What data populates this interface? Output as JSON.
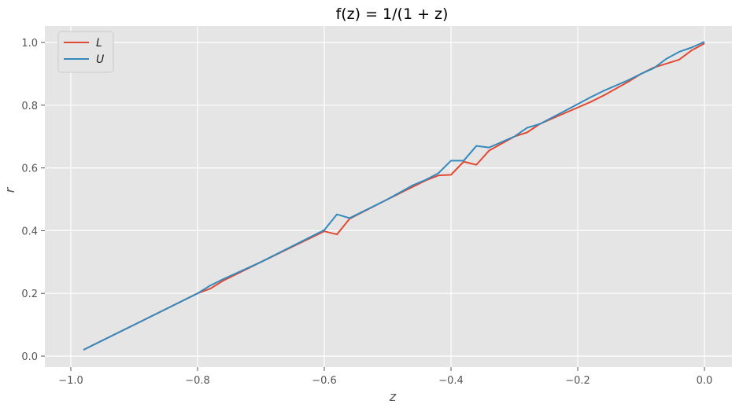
{
  "chart_data": {
    "type": "line",
    "title": "f(z) = 1/(1 + z)",
    "xlabel": "z",
    "ylabel": "r",
    "xlim": [
      -1.0,
      0.0
    ],
    "ylim": [
      -0.03,
      1.05
    ],
    "grid": true,
    "legend_position": "top-left",
    "background": "#e5e5e5",
    "x_ticks": [
      -1.0,
      -0.8,
      -0.6,
      -0.4,
      -0.2,
      0.0
    ],
    "x_tick_labels": [
      "−1.0",
      "−0.8",
      "−0.6",
      "−0.4",
      "−0.2",
      "0.0"
    ],
    "y_ticks": [
      0.0,
      0.2,
      0.4,
      0.6,
      0.8,
      1.0
    ],
    "y_tick_labels": [
      "0.0",
      "0.2",
      "0.4",
      "0.6",
      "0.8",
      "1.0"
    ],
    "series": [
      {
        "name": "L",
        "color": "#e24a33",
        "points": [
          [
            -0.98,
            0.02
          ],
          [
            -0.9,
            0.1
          ],
          [
            -0.8,
            0.2
          ],
          [
            -0.78,
            0.215
          ],
          [
            -0.76,
            0.24
          ],
          [
            -0.7,
            0.3
          ],
          [
            -0.6,
            0.398
          ],
          [
            -0.58,
            0.388
          ],
          [
            -0.56,
            0.438
          ],
          [
            -0.5,
            0.5
          ],
          [
            -0.44,
            0.56
          ],
          [
            -0.42,
            0.576
          ],
          [
            -0.4,
            0.578
          ],
          [
            -0.38,
            0.62
          ],
          [
            -0.36,
            0.61
          ],
          [
            -0.34,
            0.655
          ],
          [
            -0.3,
            0.7
          ],
          [
            -0.28,
            0.713
          ],
          [
            -0.26,
            0.74
          ],
          [
            -0.22,
            0.775
          ],
          [
            -0.18,
            0.81
          ],
          [
            -0.16,
            0.83
          ],
          [
            -0.12,
            0.875
          ],
          [
            -0.1,
            0.9
          ],
          [
            -0.08,
            0.92
          ],
          [
            -0.04,
            0.945
          ],
          [
            -0.02,
            0.975
          ],
          [
            0.0,
            0.997
          ]
        ]
      },
      {
        "name": "U",
        "color": "#348abd",
        "points": [
          [
            -0.98,
            0.02
          ],
          [
            -0.9,
            0.1
          ],
          [
            -0.8,
            0.2
          ],
          [
            -0.78,
            0.225
          ],
          [
            -0.76,
            0.245
          ],
          [
            -0.7,
            0.3
          ],
          [
            -0.6,
            0.402
          ],
          [
            -0.58,
            0.452
          ],
          [
            -0.56,
            0.44
          ],
          [
            -0.5,
            0.5
          ],
          [
            -0.46,
            0.545
          ],
          [
            -0.44,
            0.562
          ],
          [
            -0.42,
            0.583
          ],
          [
            -0.4,
            0.623
          ],
          [
            -0.38,
            0.623
          ],
          [
            -0.36,
            0.67
          ],
          [
            -0.34,
            0.665
          ],
          [
            -0.3,
            0.7
          ],
          [
            -0.28,
            0.728
          ],
          [
            -0.26,
            0.74
          ],
          [
            -0.22,
            0.782
          ],
          [
            -0.18,
            0.825
          ],
          [
            -0.16,
            0.845
          ],
          [
            -0.12,
            0.88
          ],
          [
            -0.1,
            0.9
          ],
          [
            -0.08,
            0.918
          ],
          [
            -0.06,
            0.948
          ],
          [
            -0.04,
            0.97
          ],
          [
            -0.02,
            0.984
          ],
          [
            0.0,
            1.002
          ]
        ]
      }
    ]
  }
}
